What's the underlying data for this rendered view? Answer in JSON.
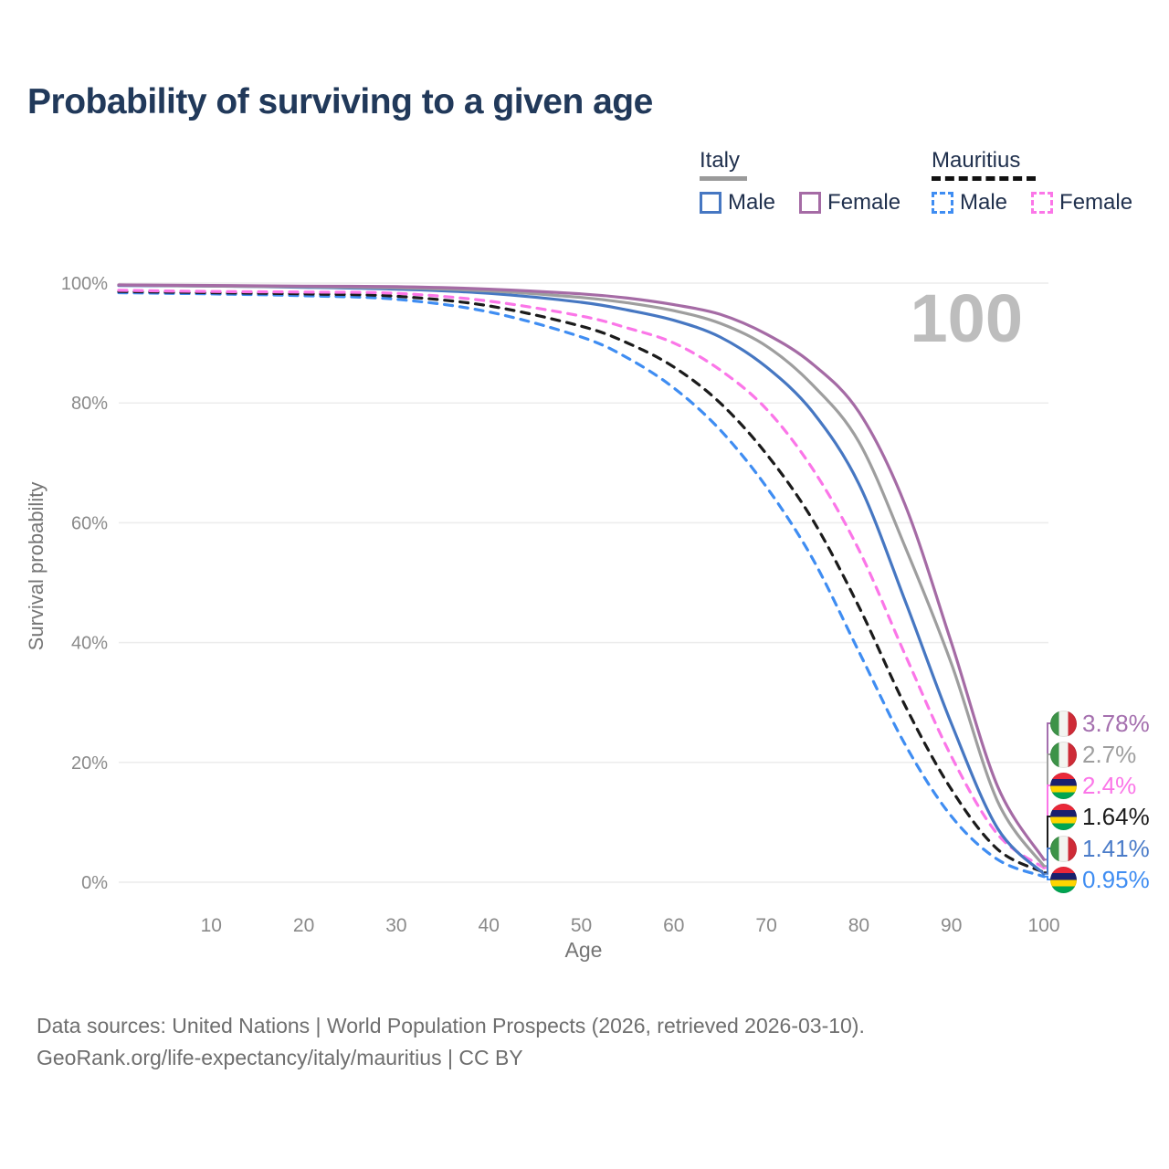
{
  "title": "Probability of surviving to a given age",
  "watermark_age": "100",
  "legend": {
    "groups": [
      {
        "country": "Italy",
        "line_style": "solid",
        "rule_color": "#9a9a9a",
        "items": [
          {
            "label": "Male",
            "color": "#4677c2"
          },
          {
            "label": "Female",
            "color": "#a56ba5"
          }
        ]
      },
      {
        "country": "Mauritius",
        "line_style": "dashed",
        "rule_color": "#111111",
        "items": [
          {
            "label": "Male",
            "color": "#3f8df2"
          },
          {
            "label": "Female",
            "color": "#fb76e8"
          }
        ]
      }
    ]
  },
  "chart_data": {
    "type": "line",
    "title": "Probability of surviving to a given age",
    "xlabel": "Age",
    "ylabel": "Survival probability",
    "xlim": [
      0,
      100
    ],
    "ylim": [
      0,
      100
    ],
    "grid": "horizontal",
    "x_ticks": [
      10,
      20,
      30,
      40,
      50,
      60,
      70,
      80,
      90,
      100
    ],
    "y_ticks": [
      0,
      20,
      40,
      60,
      80,
      100
    ],
    "y_tick_suffix": "%",
    "x": [
      0,
      10,
      20,
      30,
      40,
      50,
      55,
      60,
      65,
      70,
      75,
      80,
      85,
      90,
      95,
      100
    ],
    "series": [
      {
        "name": "Mauritius Male",
        "country": "Mauritius",
        "sex": "male",
        "color": "#3f8df2",
        "dash": "dashed",
        "values": [
          98.4,
          98.2,
          97.9,
          97.3,
          95.2,
          91.0,
          87.5,
          82.5,
          75.5,
          66.0,
          54.0,
          38.5,
          23.0,
          11.0,
          3.8,
          0.95
        ],
        "end_label": "0.95%"
      },
      {
        "name": "Mauritius",
        "country": "Mauritius",
        "sex": "both",
        "color": "#1b1b1b",
        "dash": "dashed",
        "values": [
          98.6,
          98.4,
          98.2,
          97.8,
          96.2,
          92.8,
          90.0,
          86.0,
          80.0,
          71.5,
          60.5,
          46.0,
          29.5,
          15.5,
          5.5,
          1.64
        ],
        "end_label": "1.64%"
      },
      {
        "name": "Mauritius Female",
        "country": "Mauritius",
        "sex": "female",
        "color": "#fb76e8",
        "dash": "dashed",
        "values": [
          98.8,
          98.6,
          98.5,
          98.3,
          97.0,
          94.5,
          92.5,
          90.0,
          85.5,
          79.0,
          69.0,
          55.5,
          38.0,
          21.0,
          8.0,
          2.4
        ],
        "end_label": "2.4%"
      },
      {
        "name": "Italy Male",
        "country": "Italy",
        "sex": "male",
        "color": "#4677c2",
        "dash": "solid",
        "values": [
          99.6,
          99.5,
          99.3,
          99.0,
          98.3,
          96.8,
          95.5,
          93.8,
          91.0,
          86.0,
          78.5,
          66.5,
          47.0,
          26.5,
          9.0,
          1.41
        ],
        "end_label": "1.41%"
      },
      {
        "name": "Italy",
        "country": "Italy",
        "sex": "both",
        "color": "#9e9e9e",
        "dash": "solid",
        "values": [
          99.7,
          99.5,
          99.4,
          99.2,
          98.7,
          97.6,
          96.7,
          95.4,
          93.3,
          89.5,
          83.0,
          73.5,
          56.0,
          36.5,
          13.5,
          2.7
        ],
        "end_label": "2.7%"
      },
      {
        "name": "Italy Female",
        "country": "Italy",
        "sex": "female",
        "color": "#a56ba5",
        "dash": "solid",
        "values": [
          99.7,
          99.6,
          99.5,
          99.4,
          99.0,
          98.2,
          97.5,
          96.4,
          94.8,
          91.5,
          86.5,
          78.5,
          63.0,
          40.0,
          16.0,
          3.78
        ],
        "end_label": "3.78%"
      }
    ]
  },
  "right_labels": [
    {
      "flag": "italy",
      "text": "3.78%",
      "color": "#a46fae",
      "series": "Italy Female"
    },
    {
      "flag": "italy",
      "text": "2.7%",
      "color": "#9e9e9e",
      "series": "Italy"
    },
    {
      "flag": "mauritius",
      "text": "2.4%",
      "color": "#fb76e8",
      "series": "Mauritius Female"
    },
    {
      "flag": "mauritius",
      "text": "1.64%",
      "color": "#1b1b1b",
      "series": "Mauritius"
    },
    {
      "flag": "italy",
      "text": "1.41%",
      "color": "#4b7cc9",
      "series": "Italy Male"
    },
    {
      "flag": "mauritius",
      "text": "0.95%",
      "color": "#3f8df2",
      "series": "Mauritius Male"
    }
  ],
  "footer": {
    "line1": "Data sources: United Nations | World Population Prospects (2026, retrieved 2026-03-10).",
    "line2": "GeoRank.org/life-expectancy/italy/mauritius | CC BY"
  }
}
